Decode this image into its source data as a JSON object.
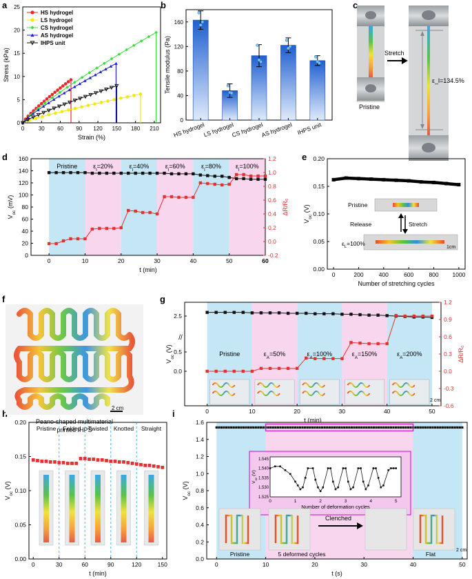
{
  "figure": {
    "panel_letters": [
      "a",
      "b",
      "c",
      "d",
      "e",
      "f",
      "g",
      "h",
      "i"
    ]
  },
  "chart_data": [
    {
      "panel": "a",
      "type": "line",
      "xlabel": "Strain (%)",
      "ylabel": "Stress (kPa)",
      "xlim": [
        0,
        220
      ],
      "ylim": [
        0,
        25
      ],
      "xticks": [
        "0",
        "30",
        "60",
        "90",
        "120",
        "150",
        "180",
        "210"
      ],
      "yticks": [
        "0",
        "5",
        "10",
        "15",
        "20",
        "25"
      ],
      "legend": "top-left",
      "series": [
        {
          "name": "HS hydrogel",
          "color": "#e8262b",
          "marker": "circle",
          "max_x": 77,
          "max_y": 9.3
        },
        {
          "name": "LS hydrogel",
          "color": "#f2ea00",
          "marker": "circle",
          "max_x": 188,
          "max_y": 6.2
        },
        {
          "name": "CS hydrogel",
          "color": "#35e035",
          "marker": "diamond",
          "max_x": 213,
          "max_y": 19.5
        },
        {
          "name": "AS hydrogel",
          "color": "#1f1fd6",
          "marker": "triangle",
          "max_x": 149,
          "max_y": 12.8
        },
        {
          "name": "IHPS unit",
          "color": "#111111",
          "marker": "tri-down",
          "max_x": 150,
          "max_y": 8.0
        }
      ]
    },
    {
      "panel": "b",
      "type": "bar",
      "ylabel": "Tensile modulus (Pa)",
      "ylim": [
        0,
        180
      ],
      "yticks": [
        "0",
        "40",
        "80",
        "120",
        "160"
      ],
      "categories": [
        "HS hydrogel",
        "LS hydrogel",
        "CS hydrogel",
        "AS hydrogel",
        "IHPS unit"
      ],
      "values": [
        163,
        48,
        105,
        122,
        97
      ],
      "errors": [
        15,
        11,
        18,
        12,
        8
      ],
      "points": [
        [
          175,
          155,
          160
        ],
        [
          56,
          45,
          44
        ],
        [
          122,
          98,
          95
        ],
        [
          130,
          117,
          120
        ],
        [
          103,
          95,
          93
        ]
      ]
    },
    {
      "panel": "d",
      "type": "line",
      "xlabel": "t (min)",
      "ylabel": "V_oc (mV)",
      "y2label": "ΔR/R₀",
      "xlim": [
        -5,
        60
      ],
      "ylim": [
        0,
        160
      ],
      "y2lim": [
        -0.2,
        1.2
      ],
      "xticks": [
        "0",
        "10",
        "20",
        "30",
        "40",
        "50",
        "60"
      ],
      "yticks": [
        "0",
        "20",
        "40",
        "60",
        "80",
        "100",
        "120",
        "140",
        "160"
      ],
      "y2ticks": [
        "-0.2",
        "0.0",
        "0.2",
        "0.4",
        "0.6",
        "0.8",
        "1.0",
        "1.2"
      ],
      "region_labels": [
        "Pristine",
        "ε_l=20%",
        "ε_l=40%",
        "ε_l=60%",
        "ε_l=80%",
        "ε_l=100%"
      ],
      "t": [
        0,
        2,
        4,
        6,
        8,
        10,
        12,
        14,
        16,
        18,
        20,
        22,
        24,
        26,
        28,
        30,
        32,
        34,
        36,
        38,
        40,
        42,
        44,
        46,
        48,
        50,
        52,
        54,
        56,
        58,
        60
      ],
      "voc": [
        137,
        137,
        137,
        137,
        137,
        137,
        136,
        136,
        136,
        136,
        136,
        136,
        136,
        136,
        136,
        136,
        136,
        135,
        135,
        135,
        135,
        133,
        132,
        131,
        131,
        129,
        127,
        127,
        126,
        126,
        126
      ],
      "dr": [
        -0.03,
        -0.03,
        0.01,
        0.04,
        0.04,
        0.04,
        0.18,
        0.19,
        0.19,
        0.19,
        0.2,
        0.45,
        0.44,
        0.42,
        0.42,
        0.4,
        0.65,
        0.65,
        0.64,
        0.64,
        0.64,
        0.85,
        0.84,
        0.83,
        0.82,
        0.83,
        0.97,
        0.97,
        0.95,
        0.95,
        0.95
      ]
    },
    {
      "panel": "e",
      "type": "line",
      "xlabel": "Number of stretching cycles",
      "ylabel": "V_oc (V)",
      "xlim": [
        -50,
        1050
      ],
      "ylim": [
        0,
        0.2
      ],
      "xticks": [
        "0",
        "200",
        "400",
        "600",
        "800",
        "1000"
      ],
      "yticks": [
        "0.00",
        "0.05",
        "0.10",
        "0.15",
        "0.20"
      ],
      "x": [
        0,
        100,
        200,
        300,
        400,
        500,
        600,
        700,
        800,
        900,
        1000
      ],
      "values": [
        0.162,
        0.165,
        0.164,
        0.163,
        0.162,
        0.161,
        0.16,
        0.158,
        0.157,
        0.155,
        0.153
      ],
      "annotations": [
        "Pristine",
        "Release",
        "Stretch",
        "ε_L=100%",
        "1cm"
      ]
    },
    {
      "panel": "g",
      "type": "line",
      "xlabel": "t (min)",
      "ylabel": "V_oc (V)",
      "y2label": "ΔR/R₀",
      "xlim": [
        -5,
        52
      ],
      "yticks": [
        "0.0",
        "0.5",
        "2.5"
      ],
      "y2ticks": [
        "-0.6",
        "-0.3",
        "0.0",
        "0.3",
        "0.6",
        "0.9",
        "1.2"
      ],
      "xticks": [
        "0",
        "10",
        "20",
        "30",
        "40",
        "50"
      ],
      "region_labels": [
        "Pristine",
        "ε_A=50%",
        "ε_A=100%",
        "ε_A=150%",
        "ε_A=200%"
      ],
      "t": [
        0,
        2,
        4,
        6,
        8,
        10,
        12,
        14,
        16,
        18,
        20,
        22,
        24,
        26,
        28,
        30,
        32,
        34,
        36,
        38,
        40,
        42,
        44,
        46,
        48,
        50
      ],
      "voc": [
        2.58,
        2.58,
        2.58,
        2.58,
        2.58,
        2.57,
        2.57,
        2.57,
        2.57,
        2.56,
        2.56,
        2.56,
        2.55,
        2.55,
        2.55,
        2.54,
        2.54,
        2.53,
        2.52,
        2.52,
        2.51,
        2.5,
        2.49,
        2.48,
        2.48,
        2.47
      ],
      "dr": [
        0.0,
        0.0,
        0.0,
        0.0,
        0.0,
        0.0,
        0.05,
        0.05,
        0.05,
        0.05,
        0.05,
        0.23,
        0.22,
        0.22,
        0.22,
        0.22,
        0.5,
        0.49,
        0.48,
        0.48,
        0.48,
        0.97,
        0.96,
        0.96,
        0.96,
        0.96
      ],
      "scale_label": "2 cm"
    },
    {
      "panel": "h",
      "type": "scatter",
      "xlabel": "t (min)",
      "ylabel": "V_oc (V)",
      "xlim": [
        -5,
        155
      ],
      "ylim": [
        0,
        0.2
      ],
      "xticks": [
        "0",
        "30",
        "60",
        "90",
        "120",
        "150"
      ],
      "yticks": [
        "0.00",
        "0.05",
        "0.10",
        "0.15",
        "0.20"
      ],
      "region_labels": [
        "Pristine",
        "Folded",
        "Twisted",
        "Knotted",
        "Straight"
      ],
      "t": [
        0,
        5,
        10,
        15,
        20,
        25,
        30,
        35,
        40,
        45,
        50,
        55,
        60,
        65,
        70,
        75,
        80,
        85,
        90,
        95,
        100,
        105,
        110,
        115,
        120,
        125,
        130,
        135,
        140,
        145,
        150
      ],
      "values": [
        0.145,
        0.144,
        0.143,
        0.143,
        0.142,
        0.142,
        0.141,
        0.141,
        0.14,
        0.14,
        0.14,
        0.147,
        0.147,
        0.146,
        0.146,
        0.145,
        0.145,
        0.144,
        0.143,
        0.143,
        0.142,
        0.142,
        0.141,
        0.14,
        0.139,
        0.138,
        0.137,
        0.137,
        0.136,
        0.135,
        0.134
      ]
    },
    {
      "panel": "i",
      "type": "line",
      "xlabel": "t (s)",
      "ylabel": "V_oc (V)",
      "xlim": [
        -2,
        51
      ],
      "ylim": [
        0,
        1.6
      ],
      "xticks": [
        "0",
        "10",
        "20",
        "30",
        "40",
        "50"
      ],
      "yticks": [
        "0.0",
        "0.2",
        "0.4",
        "0.6",
        "0.8",
        "1.0",
        "1.2",
        "1.4",
        "1.6"
      ],
      "value": 1.54,
      "labels": [
        "Pristine",
        "5 deformed cycles",
        "Clenched",
        "Flat",
        "2 cm"
      ],
      "inset": {
        "xlabel": "Number of deformation cycles",
        "ylabel": "V_oc (V)",
        "xticks": [
          "0",
          "1",
          "2",
          "3",
          "4",
          "5"
        ],
        "yticks": [
          "1.525",
          "1.530",
          "1.535",
          "1.540",
          "1.545"
        ],
        "x": [
          0,
          0.2,
          0.4,
          0.6,
          0.8,
          1.0,
          1.1,
          1.2,
          1.3,
          1.4,
          1.5,
          1.7,
          1.8,
          1.9,
          2.0,
          2.1,
          2.3,
          2.4,
          2.5,
          2.6,
          2.7,
          2.9,
          3.0,
          3.1,
          3.2,
          3.3,
          3.5,
          3.6,
          3.7,
          3.8,
          3.9,
          4.1,
          4.2,
          4.3,
          4.4,
          4.5,
          4.7,
          4.8,
          4.9,
          5.0
        ],
        "values": [
          1.54,
          1.541,
          1.541,
          1.539,
          1.537,
          1.533,
          1.531,
          1.529,
          1.53,
          1.535,
          1.54,
          1.54,
          1.534,
          1.53,
          1.528,
          1.53,
          1.54,
          1.54,
          1.533,
          1.529,
          1.53,
          1.54,
          1.54,
          1.533,
          1.529,
          1.53,
          1.54,
          1.54,
          1.533,
          1.529,
          1.531,
          1.54,
          1.54,
          1.535,
          1.53,
          1.531,
          1.539,
          1.54,
          1.54,
          1.54
        ]
      }
    }
  ],
  "panel_c": {
    "labels": [
      "Pristine",
      "Stretch",
      "ε_l=134.5%"
    ]
  },
  "panel_f": {
    "caption_line1": "Peano-shaped multimaterial",
    "caption_line2": "printed IHPS",
    "scale_label": "2 cm"
  }
}
